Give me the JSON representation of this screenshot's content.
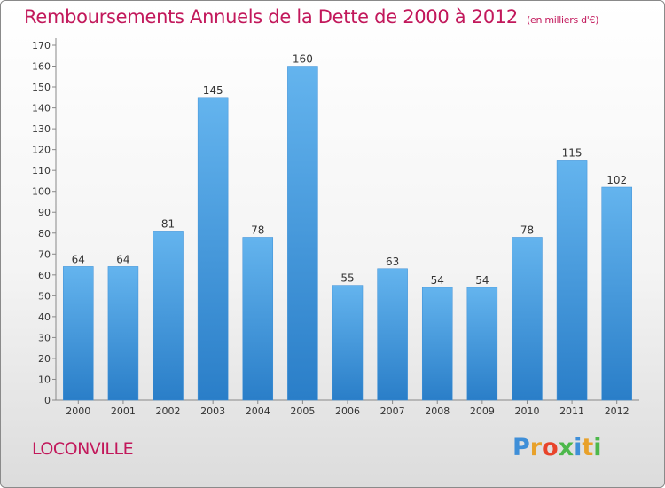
{
  "title": "Remboursements Annuels de la Dette de 2000 à 2012",
  "subtitle": "(en milliers d'€)",
  "city": "LOCONVILLE",
  "logo": {
    "letters": [
      {
        "ch": "P",
        "color": "#3f8fd8"
      },
      {
        "ch": "r",
        "color": "#e8a12a"
      },
      {
        "ch": "o",
        "color": "#e8442a"
      },
      {
        "ch": "x",
        "color": "#4db84b"
      },
      {
        "ch": "i",
        "color": "#3f8fd8"
      },
      {
        "ch": "t",
        "color": "#e8a12a"
      },
      {
        "ch": "i",
        "color": "#4db84b"
      }
    ]
  },
  "colors": {
    "bar_light": "#64b4ee",
    "bar_dark": "#2a7ec8",
    "title": "#c2185b"
  },
  "chart_data": {
    "type": "bar",
    "categories": [
      "2000",
      "2001",
      "2002",
      "2003",
      "2004",
      "2005",
      "2006",
      "2007",
      "2008",
      "2009",
      "2010",
      "2011",
      "2012"
    ],
    "values": [
      64,
      64,
      81,
      145,
      78,
      160,
      55,
      63,
      54,
      54,
      78,
      115,
      102
    ],
    "ylim": [
      0,
      170
    ],
    "yticks": [
      0,
      10,
      20,
      30,
      40,
      50,
      60,
      70,
      80,
      90,
      100,
      110,
      120,
      130,
      140,
      150,
      160,
      170
    ],
    "grid": false,
    "legend": "none"
  }
}
